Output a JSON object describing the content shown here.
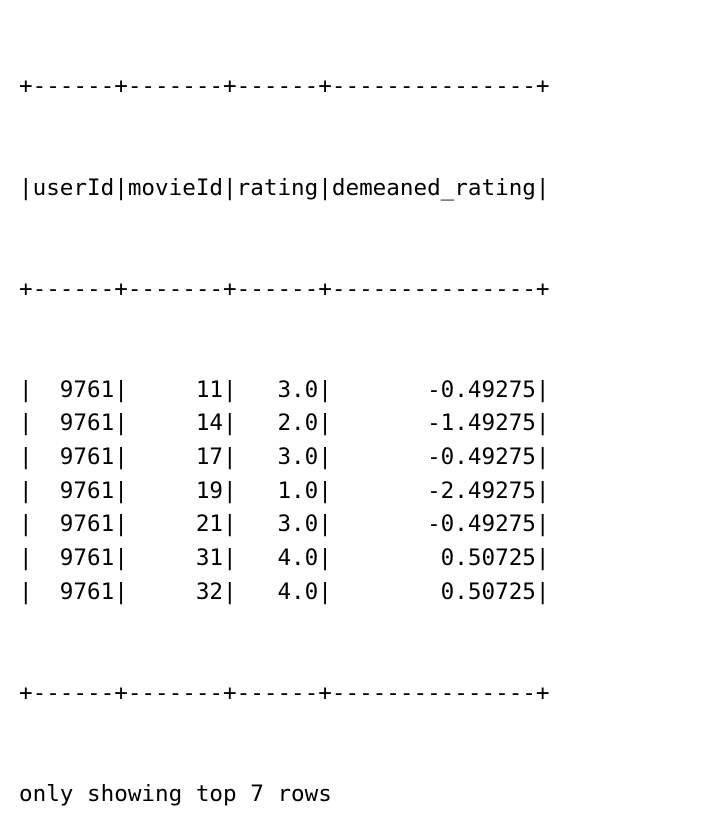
{
  "table": {
    "columns": [
      {
        "name": "userId",
        "width": 6,
        "align": "right"
      },
      {
        "name": "movieId",
        "width": 7,
        "align": "right"
      },
      {
        "name": "rating",
        "width": 6,
        "align": "right"
      },
      {
        "name": "demeaned_rating",
        "width": 15,
        "align": "right"
      }
    ],
    "rows": [
      [
        "9761",
        "11",
        "3.0",
        "-0.49275"
      ],
      [
        "9761",
        "14",
        "2.0",
        "-1.49275"
      ],
      [
        "9761",
        "17",
        "3.0",
        "-0.49275"
      ],
      [
        "9761",
        "19",
        "1.0",
        "-2.49275"
      ],
      [
        "9761",
        "21",
        "3.0",
        "-0.49275"
      ],
      [
        "9761",
        "31",
        "4.0",
        "0.50725"
      ],
      [
        "9761",
        "32",
        "4.0",
        "0.50725"
      ]
    ]
  },
  "footer": {
    "text": "only showing top 7 rows"
  }
}
